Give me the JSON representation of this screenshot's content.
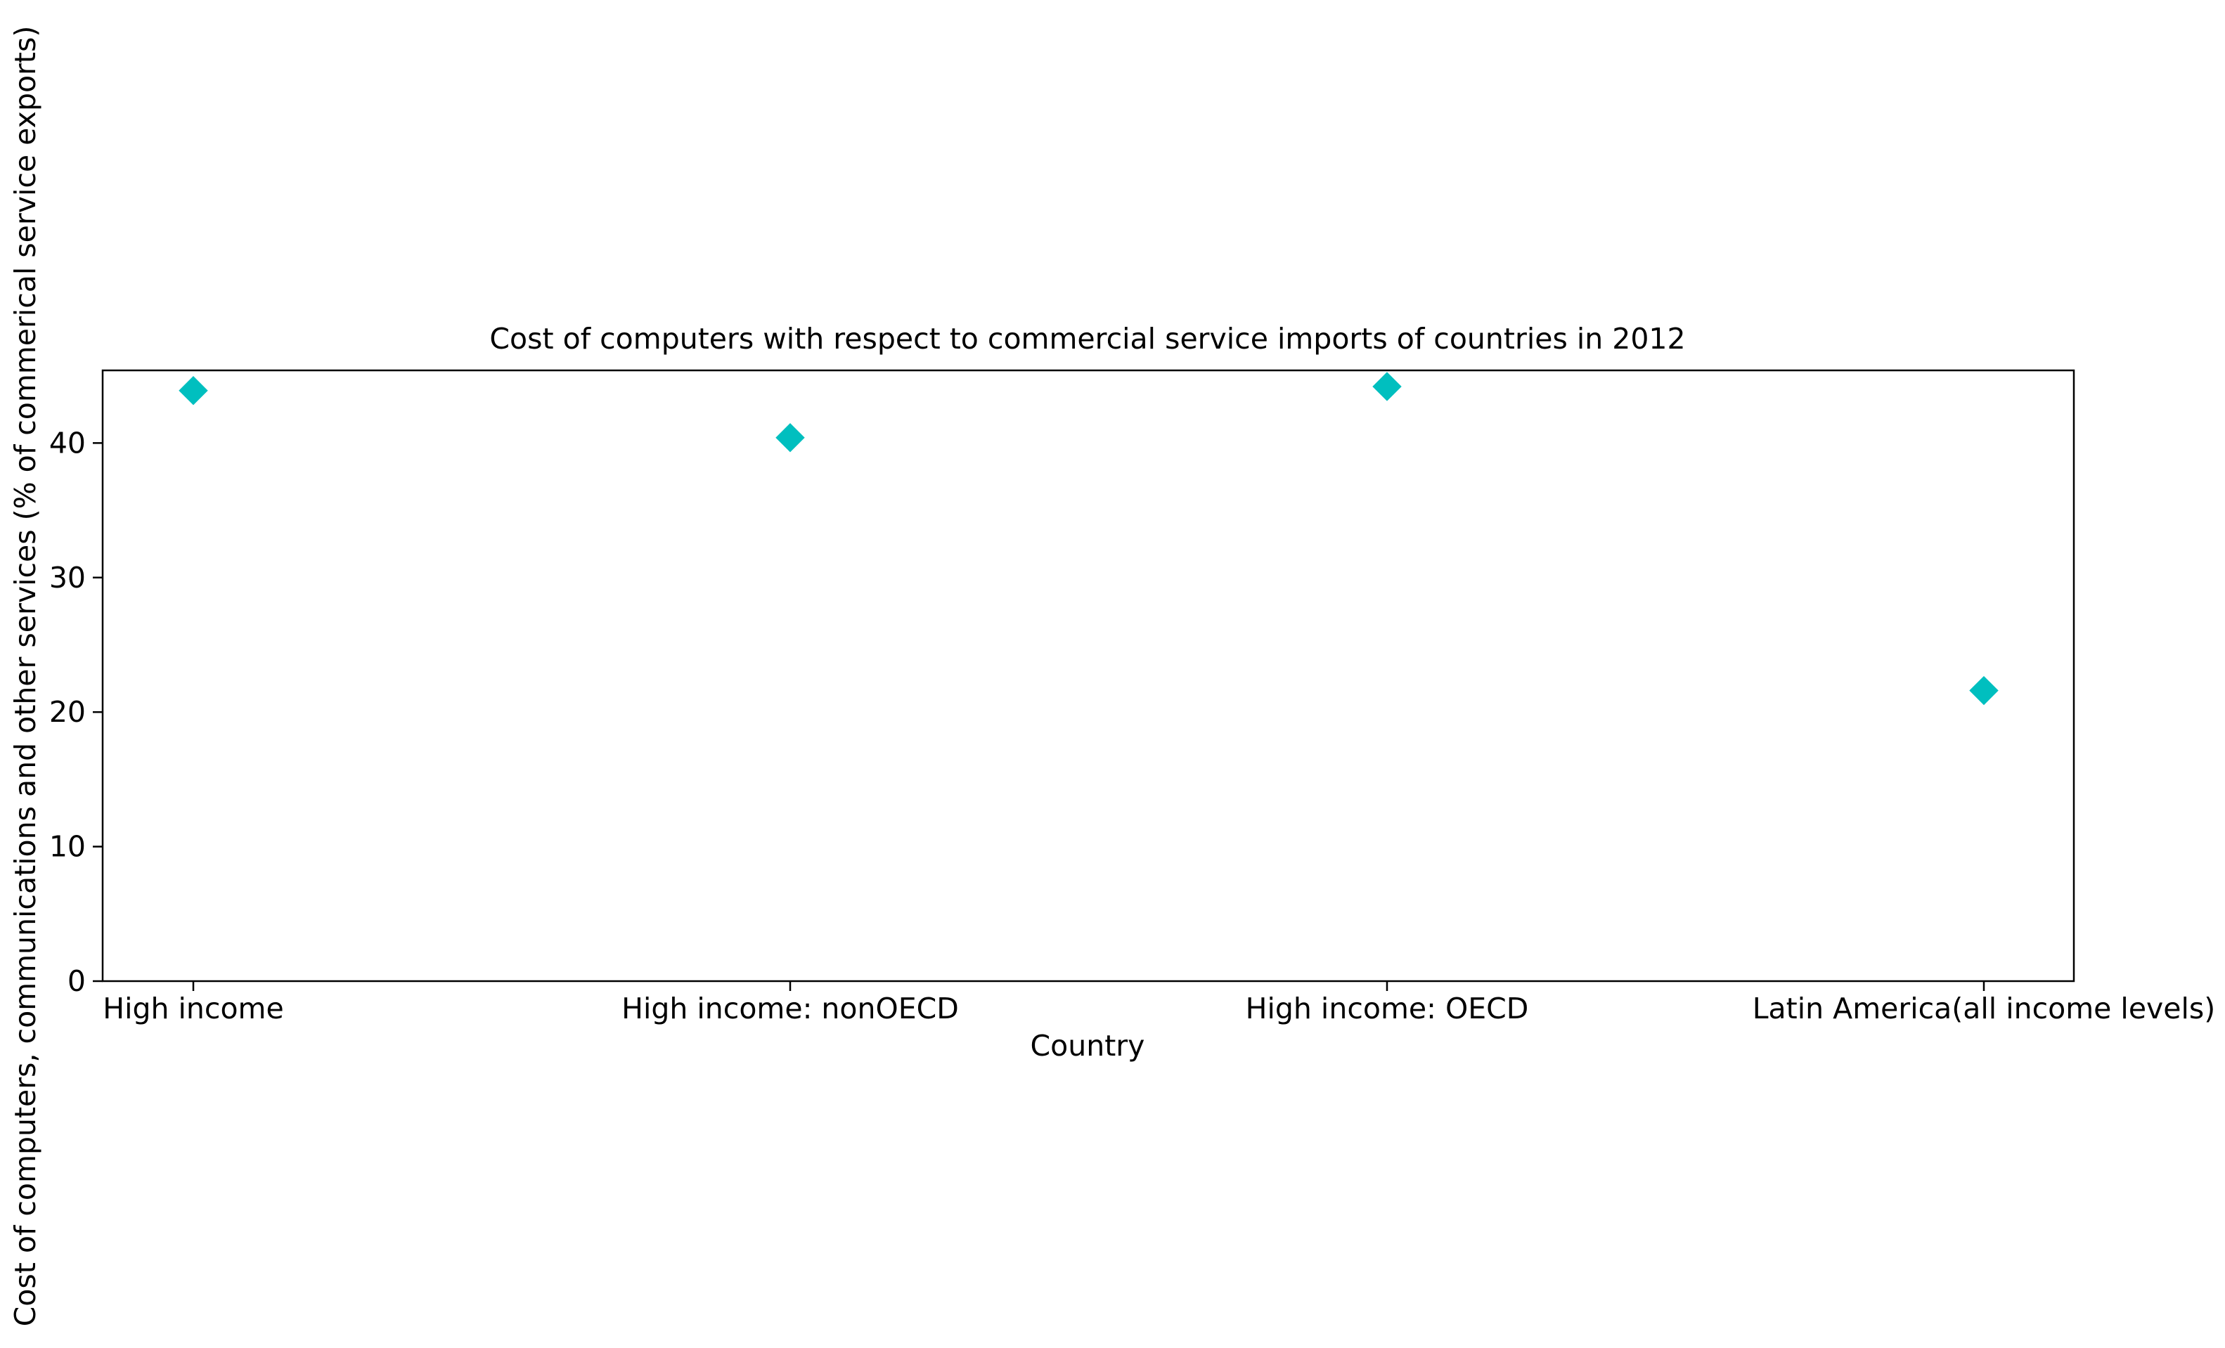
{
  "chart_data": {
    "type": "scatter",
    "title": "Cost of computers with respect to commercial service imports of countries in 2012",
    "xlabel": "Country",
    "ylabel": "Cost of computers, communications and other services (% of commerical service exports)",
    "categories": [
      "High income",
      "High income: nonOECD",
      "High income: OECD",
      "Latin America(all income levels)"
    ],
    "series": [
      {
        "values": [
          43.9,
          40.4,
          44.2,
          21.6
        ]
      }
    ],
    "ylim": [
      0,
      45.4
    ],
    "yticks": [
      0,
      10,
      20,
      30,
      40
    ],
    "grid": false,
    "marker": "diamond",
    "color": "#00bfbf"
  }
}
